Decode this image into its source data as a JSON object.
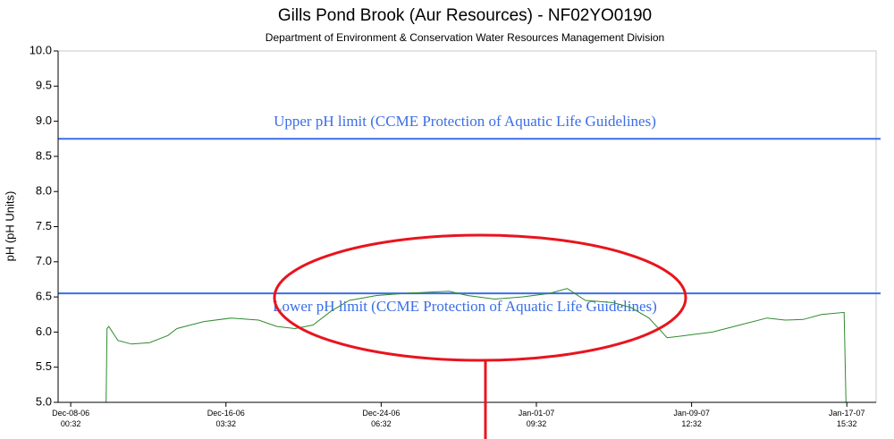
{
  "chart_data": {
    "type": "line",
    "title": "Gills Pond Brook (Aur Resources) - NF02YO0190",
    "subtitle": "Department of Environment & Conservation Water Resources Management Division",
    "y_label": "pH (pH Units)",
    "xlim": [
      "2006-12-07T08:42",
      "2007-01-19T04:20"
    ],
    "xticks": [
      {
        "value": "2006-12-08T00:32",
        "label": "Dec-08-06\n00:32"
      },
      {
        "value": "2006-12-16T03:32",
        "label": "Dec-16-06\n03:32"
      },
      {
        "value": "2006-12-24T06:32",
        "label": "Dec-24-06\n06:32"
      },
      {
        "value": "2007-01-01T09:32",
        "label": "Jan-01-07\n09:32"
      },
      {
        "value": "2007-01-09T12:32",
        "label": "Jan-09-07\n12:32"
      },
      {
        "value": "2007-01-17T15:32",
        "label": "Jan-17-07\n15:32"
      }
    ],
    "ylim": [
      5,
      10
    ],
    "yticks": [
      {
        "value": 5,
        "label": "5.0"
      },
      5.5,
      {
        "value": 6,
        "label": "6.0"
      },
      6.5,
      {
        "value": 7,
        "label": "7.0"
      },
      7.5,
      {
        "value": 8,
        "label": "8.0"
      },
      8.5,
      {
        "value": 9,
        "label": "9.0"
      },
      9.5,
      {
        "value": 10,
        "label": "10.0"
      }
    ],
    "reference_lines": [
      {
        "label": "Upper pH limit (CCME Protection of Aquatic Life Guidelines)",
        "value": 8.75,
        "color": "#3a6ee8"
      },
      {
        "label": "Lower pH limit (CCME Protection of Aquatic Life Guidelines)",
        "value": 6.55,
        "color": "#3a6ee8"
      }
    ],
    "x": [
      "2006-12-09T21:00",
      "2006-12-09T22:08",
      "2006-12-10T00:26",
      "2006-12-10T11:50",
      "2006-12-11T04:56",
      "2006-12-12T03:44",
      "2006-12-13T02:32",
      "2006-12-13T13:56",
      "2006-12-14T07:02",
      "2006-12-15T00:08",
      "2006-12-16T10:20",
      "2006-12-17T20:38",
      "2006-12-18T19:26",
      "2006-12-19T18:14",
      "2006-12-20T17:02",
      "2006-12-21T15:50",
      "2006-12-22T14:38",
      "2006-12-24T00:50",
      "2006-12-25T11:02",
      "2006-12-26T21:14",
      "2006-12-27T20:02",
      "2006-12-28T18:56",
      "2006-12-30T05:08",
      "2006-12-31T15:20",
      "2007-01-02T01:32",
      "2007-01-03T00:20",
      "2007-01-03T23:08",
      "2007-01-05T09:20",
      "2007-01-06T08:08",
      "2007-01-07T06:56",
      "2007-01-08T05:44",
      "2007-01-09T04:32",
      "2007-01-10T14:50",
      "2007-01-12T01:02",
      "2007-01-13T11:14",
      "2007-01-14T10:02",
      "2007-01-15T08:50",
      "2007-01-16T07:38",
      "2007-01-17T12:08",
      "2007-01-17T14:26"
    ],
    "series": [
      {
        "color": "#2e8b2e",
        "values": [
          5.0,
          6.05,
          6.08,
          5.88,
          5.83,
          5.85,
          5.95,
          6.05,
          6.1,
          6.15,
          6.2,
          6.17,
          6.08,
          6.05,
          6.1,
          6.3,
          6.45,
          6.52,
          6.55,
          6.57,
          6.58,
          6.52,
          6.47,
          6.5,
          6.55,
          6.62,
          6.45,
          6.42,
          6.35,
          6.2,
          5.92,
          5.95,
          6.0,
          6.1,
          6.2,
          6.17,
          6.18,
          6.25,
          6.28,
          5.0
        ]
      }
    ]
  }
}
